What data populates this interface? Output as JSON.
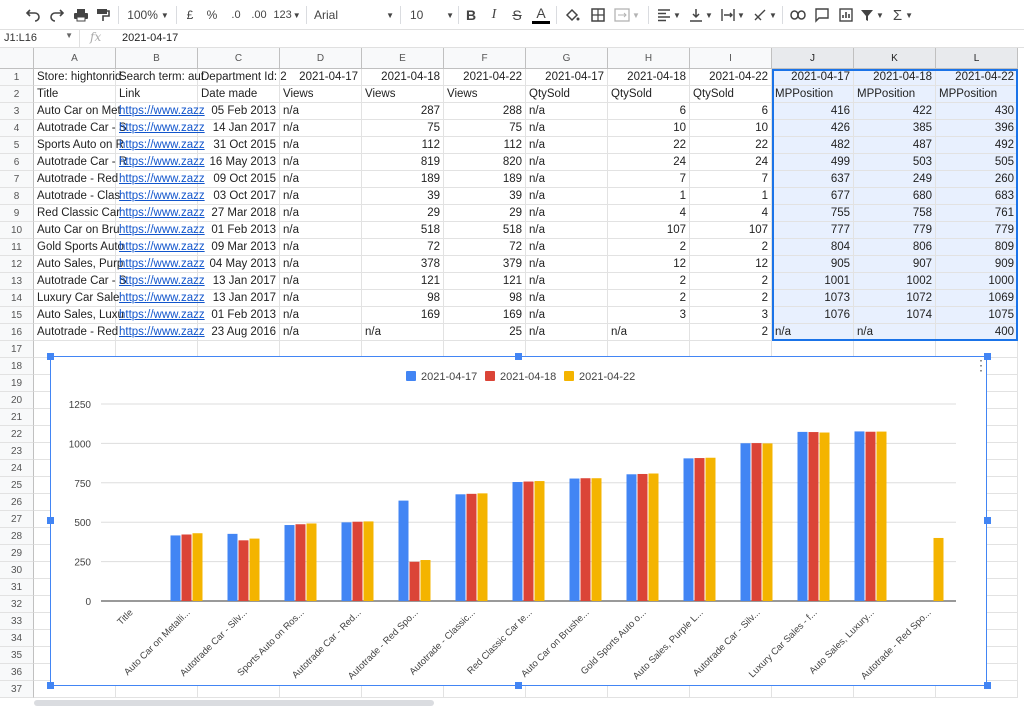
{
  "toolbar": {
    "zoom": "100%",
    "currency": "£",
    "percent": "%",
    "dec_decrease": ".0",
    "dec_increase": ".00",
    "format_more": "123",
    "font": "Arial",
    "font_size": "10",
    "bold": "B",
    "italic": "I",
    "strike": "S",
    "text_color": "A",
    "sum": "Σ"
  },
  "formula_bar": {
    "name_box": "J1:L16",
    "fx": "fx",
    "value": "2021-04-17"
  },
  "columns": [
    "A",
    "B",
    "C",
    "D",
    "E",
    "F",
    "G",
    "H",
    "I",
    "J",
    "K",
    "L"
  ],
  "rows": [
    {
      "num": "1",
      "cells": [
        "Store: hightonrid",
        "Search term: aut",
        "Department Id: 2",
        "2021-04-17",
        "2021-04-18",
        "2021-04-22",
        "2021-04-17",
        "2021-04-18",
        "2021-04-22",
        "2021-04-17",
        "2021-04-18",
        "2021-04-22"
      ]
    },
    {
      "num": "2",
      "cells": [
        "Title",
        "Link",
        "Date made",
        "Views",
        "Views",
        "Views",
        "QtySold",
        "QtySold",
        "QtySold",
        "MPPosition",
        "MPPosition",
        "MPPosition"
      ]
    },
    {
      "num": "3",
      "cells": [
        "Auto Car on Met",
        "https://www.zazz",
        "05 Feb 2013",
        "n/a",
        "287",
        "288",
        "n/a",
        "6",
        "6",
        "416",
        "422",
        "430"
      ]
    },
    {
      "num": "4",
      "cells": [
        "Autotrade Car - S",
        "https://www.zazz",
        "14 Jan 2017",
        "n/a",
        "75",
        "75",
        "n/a",
        "10",
        "10",
        "426",
        "385",
        "396"
      ]
    },
    {
      "num": "5",
      "cells": [
        "Sports Auto on R",
        "https://www.zazz",
        "31 Oct 2015",
        "n/a",
        "112",
        "112",
        "n/a",
        "22",
        "22",
        "482",
        "487",
        "492"
      ]
    },
    {
      "num": "6",
      "cells": [
        "Autotrade Car - R",
        "https://www.zazz",
        "16 May 2013",
        "n/a",
        "819",
        "820",
        "n/a",
        "24",
        "24",
        "499",
        "503",
        "505"
      ]
    },
    {
      "num": "7",
      "cells": [
        "Autotrade - Red",
        "https://www.zazz",
        "09 Oct 2015",
        "n/a",
        "189",
        "189",
        "n/a",
        "7",
        "7",
        "637",
        "249",
        "260"
      ]
    },
    {
      "num": "8",
      "cells": [
        "Autotrade - Clas",
        "https://www.zazz",
        "03 Oct 2017",
        "n/a",
        "39",
        "39",
        "n/a",
        "1",
        "1",
        "677",
        "680",
        "683"
      ]
    },
    {
      "num": "9",
      "cells": [
        "Red Classic Car",
        "https://www.zazz",
        "27 Mar 2018",
        "n/a",
        "29",
        "29",
        "n/a",
        "4",
        "4",
        "755",
        "758",
        "761"
      ]
    },
    {
      "num": "10",
      "cells": [
        "Auto Car on Bru",
        "https://www.zazz",
        "01 Feb 2013",
        "n/a",
        "518",
        "518",
        "n/a",
        "107",
        "107",
        "777",
        "779",
        "779"
      ]
    },
    {
      "num": "11",
      "cells": [
        "Gold Sports Auto",
        "https://www.zazz",
        "09 Mar 2013",
        "n/a",
        "72",
        "72",
        "n/a",
        "2",
        "2",
        "804",
        "806",
        "809"
      ]
    },
    {
      "num": "12",
      "cells": [
        "Auto Sales, Purp",
        "https://www.zazz",
        "04 May 2013",
        "n/a",
        "378",
        "379",
        "n/a",
        "12",
        "12",
        "905",
        "907",
        "909"
      ]
    },
    {
      "num": "13",
      "cells": [
        "Autotrade Car - S",
        "https://www.zazz",
        "13 Jan 2017",
        "n/a",
        "121",
        "121",
        "n/a",
        "2",
        "2",
        "1001",
        "1002",
        "1000"
      ]
    },
    {
      "num": "14",
      "cells": [
        "Luxury Car Sale",
        "https://www.zazz",
        "13 Jan 2017",
        "n/a",
        "98",
        "98",
        "n/a",
        "2",
        "2",
        "1073",
        "1072",
        "1069"
      ]
    },
    {
      "num": "15",
      "cells": [
        "Auto Sales, Luxu",
        "https://www.zazz",
        "01 Feb 2013",
        "n/a",
        "169",
        "169",
        "n/a",
        "3",
        "3",
        "1076",
        "1074",
        "1075"
      ]
    },
    {
      "num": "16",
      "cells": [
        "Autotrade - Red",
        "https://www.zazz",
        "23 Aug 2016",
        "n/a",
        "n/a",
        "25",
        "n/a",
        "n/a",
        "2",
        "n/a",
        "n/a",
        "400"
      ]
    }
  ],
  "empty_rows": [
    "17",
    "18",
    "19",
    "20",
    "21",
    "22",
    "23",
    "24",
    "25",
    "26",
    "27",
    "28",
    "29",
    "30",
    "31",
    "32",
    "33",
    "34",
    "35",
    "36",
    "37"
  ],
  "colors": {
    "series1": "#4285f4",
    "series2": "#db4437",
    "series3": "#f4b400",
    "selection": "#1a73e8",
    "selection_fill": "#e8f0fe"
  },
  "chart_data": {
    "type": "bar",
    "title": "",
    "categories": [
      "Title",
      "Auto Car on Metalli...",
      "Autotrade Car - Silv...",
      "Sports Auto on Ros...",
      "Autotrade Car - Red...",
      "Autotrade - Red Spo...",
      "Autotrade - Classic...",
      "Red Classic Car te...",
      "Auto Car on Brushe...",
      "Gold Sports Auto o...",
      "Auto Sales, Purple L...",
      "Autotrade Car - Silv...",
      "Luxury Car Sales - f...",
      "Auto Sales, Luxury...",
      "Autotrade - Red Spo..."
    ],
    "series": [
      {
        "name": "2021-04-17",
        "values": [
          null,
          416,
          426,
          482,
          499,
          637,
          677,
          755,
          777,
          804,
          905,
          1001,
          1073,
          1076,
          null
        ]
      },
      {
        "name": "2021-04-18",
        "values": [
          null,
          422,
          385,
          487,
          503,
          249,
          680,
          758,
          779,
          806,
          907,
          1002,
          1072,
          1074,
          null
        ]
      },
      {
        "name": "2021-04-22",
        "values": [
          null,
          430,
          396,
          492,
          505,
          260,
          683,
          761,
          779,
          809,
          909,
          1000,
          1069,
          1075,
          400
        ]
      }
    ],
    "yticks": [
      "0",
      "250",
      "500",
      "750",
      "1000",
      "1250"
    ],
    "ylim": [
      0,
      1250
    ],
    "legend": "top",
    "grid": true
  }
}
